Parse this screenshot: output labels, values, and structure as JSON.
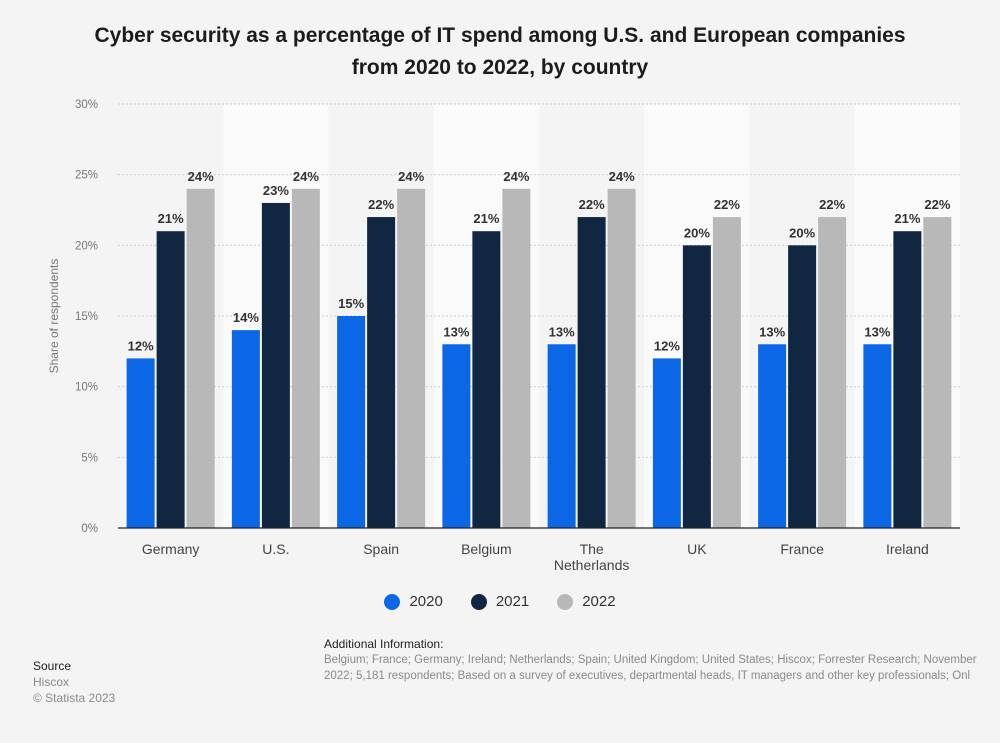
{
  "title": {
    "line1": "Cyber security as a percentage of IT spend among U.S. and European companies",
    "line2": "from 2020 to 2022, by country"
  },
  "colors": {
    "2020": "#0b67e6",
    "2021": "#112640",
    "2022": "#b8b8b8",
    "grid": "#cfcfcf",
    "band": "#ffffff"
  },
  "legend": [
    "2020",
    "2021",
    "2022"
  ],
  "additional_info": {
    "heading": "Additional Information:",
    "line1": "Belgium; France; Germany; Ireland; Netherlands; Spain; United Kingdom; United States; Hiscox; Forrester Research; November",
    "line2": "2022; 5,181 respondents; Based on a survey of executives, departmental heads, IT managers and other key professionals; Onl"
  },
  "source": {
    "heading": "Source",
    "name": "Hiscox",
    "copyright": "© Statista 2023"
  },
  "chart_data": {
    "type": "bar",
    "categories": [
      "Germany",
      "U.S.",
      "Spain",
      "Belgium",
      "The Netherlands",
      "UK",
      "France",
      "Ireland"
    ],
    "category_lines": [
      [
        "Germany"
      ],
      [
        "U.S."
      ],
      [
        "Spain"
      ],
      [
        "Belgium"
      ],
      [
        "The",
        "Netherlands"
      ],
      [
        "UK"
      ],
      [
        "France"
      ],
      [
        "Ireland"
      ]
    ],
    "series": [
      {
        "name": "2020",
        "values": [
          12,
          14,
          15,
          13,
          13,
          12,
          13,
          13
        ]
      },
      {
        "name": "2021",
        "values": [
          21,
          23,
          22,
          21,
          22,
          20,
          20,
          21
        ]
      },
      {
        "name": "2022",
        "values": [
          24,
          24,
          24,
          24,
          24,
          22,
          22,
          22
        ]
      }
    ],
    "ylabel": "Share of respondents",
    "ylim": [
      0,
      30
    ],
    "yticks": [
      0,
      5,
      10,
      15,
      20,
      25,
      30
    ],
    "value_suffix": "%",
    "grid": true,
    "legend_position": "bottom"
  }
}
